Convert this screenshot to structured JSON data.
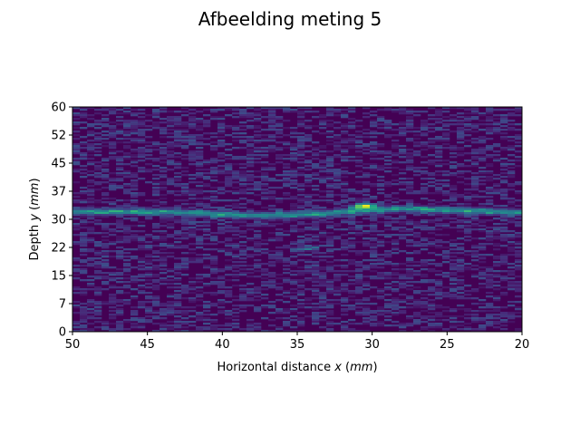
{
  "chart_data": {
    "type": "heatmap",
    "title": "Afbeelding meting 5",
    "xlabel_prefix": "Horizontal distance ",
    "xlabel_var": "x",
    "xlabel_unit": "mm",
    "ylabel_prefix": "Depth ",
    "ylabel_var": "y",
    "ylabel_unit": "mm",
    "xlim": [
      50,
      20
    ],
    "ylim": [
      0,
      60
    ],
    "x_ticks": [
      50,
      45,
      40,
      35,
      30,
      25,
      20
    ],
    "x_tick_labels": [
      "50",
      "45",
      "40",
      "35",
      "30",
      "25",
      "20"
    ],
    "y_ticks": [
      0,
      7.5,
      15,
      22.5,
      30,
      37.5,
      45,
      52.5,
      60
    ],
    "y_tick_labels": [
      "0",
      "7",
      "15",
      "22",
      "30",
      "37",
      "45",
      "52",
      "60"
    ],
    "colormap": "viridis",
    "background_color": "#440154",
    "grid": false,
    "features": [
      {
        "kind": "reflector-line",
        "points": [
          [
            50,
            32.0
          ],
          [
            44,
            32.0
          ],
          [
            38,
            31.0
          ],
          [
            34,
            31.3
          ],
          [
            31,
            32.3
          ],
          [
            28,
            32.8
          ],
          [
            24,
            32.3
          ],
          [
            20,
            31.8
          ]
        ],
        "intensity": 0.45
      },
      {
        "kind": "hotspot",
        "x": 30.5,
        "y": 33.5,
        "intensity": 1.0
      },
      {
        "kind": "faint-segment",
        "points": [
          [
            35.5,
            21.7
          ],
          [
            33.5,
            22.5
          ]
        ],
        "intensity": 0.3
      }
    ]
  }
}
